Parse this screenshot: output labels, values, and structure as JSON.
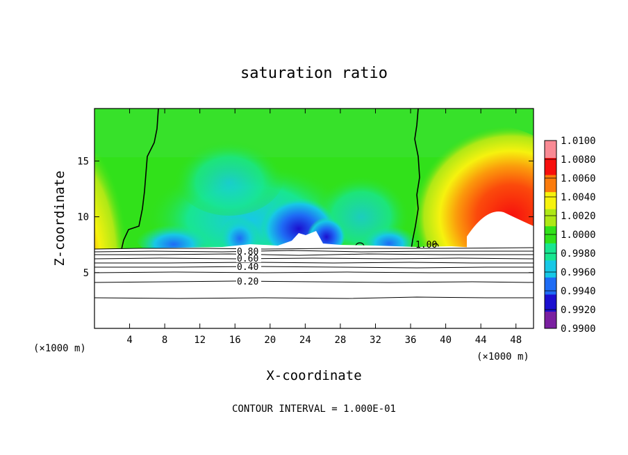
{
  "chart_data": {
    "type": "heatmap",
    "title": "saturation ratio",
    "xlabel": "X-coordinate",
    "ylabel": "Z-coordinate",
    "x_unit_left": "(×1000 m)",
    "x_unit_right": "(×1000 m)",
    "footer": "CONTOUR INTERVAL = 1.000E-01",
    "xlim": [
      0,
      50
    ],
    "ylim": [
      0,
      19.7
    ],
    "x_ticks": [
      4,
      8,
      12,
      16,
      20,
      24,
      28,
      32,
      36,
      40,
      44,
      48
    ],
    "y_ticks": [
      5,
      10,
      15
    ],
    "colorbar": {
      "range": [
        0.99,
        1.01
      ],
      "tick_labels": [
        "1.0100",
        "1.0080",
        "1.0060",
        "1.0040",
        "1.0020",
        "1.0000",
        "0.9980",
        "0.9960",
        "0.9940",
        "0.9920",
        "0.9900"
      ],
      "colors": [
        "#7a1fa0",
        "#1b0fd0",
        "#1e6cf5",
        "#17c8e6",
        "#18e690",
        "#31e11a",
        "#aee816",
        "#f6f20e",
        "#fb7b0c",
        "#f70f0d",
        "#f98a94"
      ]
    },
    "contour_labels": [
      "0.80",
      "0.60",
      "0.40",
      "0.20",
      "1.00"
    ],
    "contour_levels": [
      0.2,
      0.4,
      0.6,
      0.8,
      1.0
    ],
    "grid": false
  }
}
